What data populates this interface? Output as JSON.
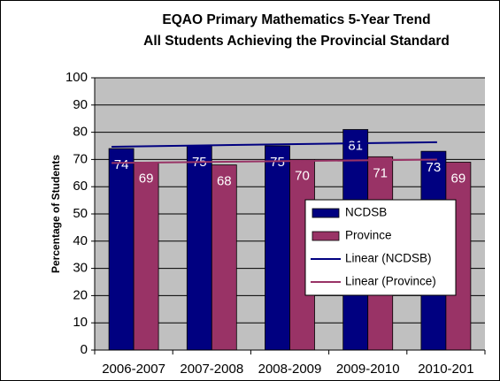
{
  "chart_data": {
    "type": "bar",
    "title": "EQAO Primary Mathematics 5-Year Trend",
    "subtitle": "All Students Achieving the Provincial Standard",
    "y_label": "Percentage of Students",
    "categories": [
      "2006-2007",
      "2007-2008",
      "2008-2009",
      "2009-2010",
      "2010-201"
    ],
    "series": [
      {
        "name": "NCDSB",
        "color": "#000080",
        "values": [
          74,
          75,
          75,
          81,
          73
        ],
        "trendline": {
          "name": "Linear (NCDSB)",
          "type": "linear"
        }
      },
      {
        "name": "Province",
        "color": "#993366",
        "values": [
          69,
          68,
          70,
          71,
          69
        ],
        "trendline": {
          "name": "Linear (Province)",
          "type": "linear"
        }
      }
    ],
    "ylim": [
      0,
      100
    ],
    "yticks": [
      0,
      10,
      20,
      30,
      40,
      50,
      60,
      70,
      80,
      90,
      100
    ],
    "grid": true,
    "plot_background": "#c0c0c0",
    "legend": "center"
  }
}
